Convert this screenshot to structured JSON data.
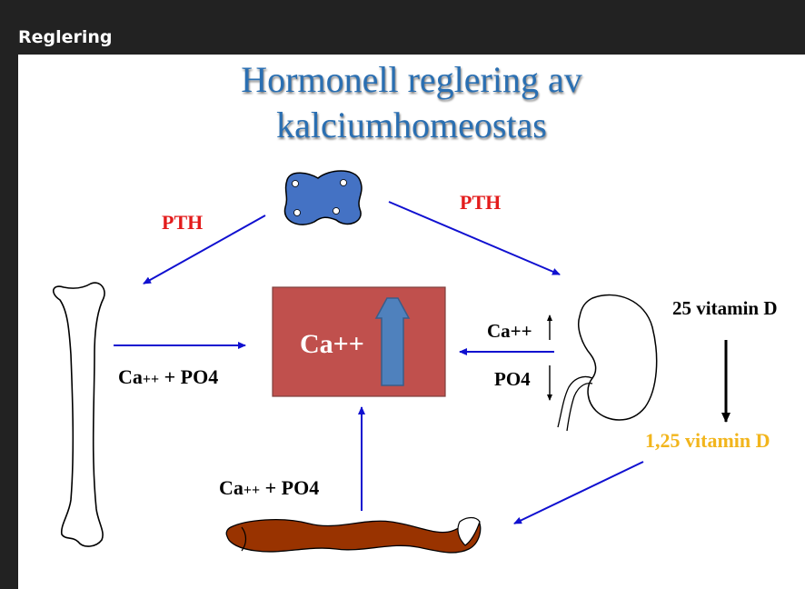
{
  "window": {
    "title": "Reglering"
  },
  "slide": {
    "title_line1": "Hormonell reglering av",
    "title_line2": "kalciumhomeostas",
    "labels": {
      "pth_left": "PTH",
      "pth_right": "PTH",
      "ca_center": "Ca++",
      "bone_ca": "Ca",
      "bone_ca_sup": "++",
      "bone_po4": " + PO4",
      "kidney_ca": "Ca++",
      "kidney_po4": "PO4",
      "vitd_25": "25 vitamin D",
      "vitd_125": "1,25 vitamin D",
      "gut_ca": "Ca",
      "gut_ca_sup": "++",
      "gut_po4": " + PO4"
    }
  },
  "colors": {
    "title": "#2a6fb2",
    "arrow": "#1010d0",
    "pth": "#e31c1c",
    "box": "#c0504d",
    "up_arrow": "#4f81bd",
    "vitamin_d_active": "#f2b51c",
    "gland": "#4472c4",
    "intestine": "#993300"
  }
}
